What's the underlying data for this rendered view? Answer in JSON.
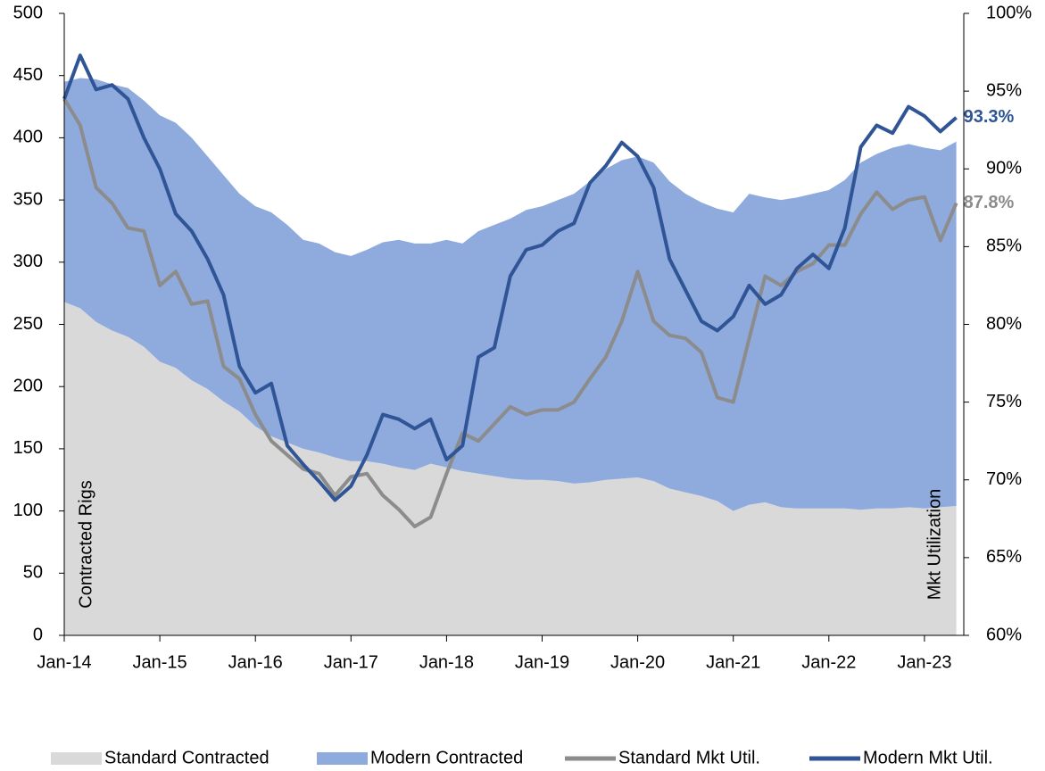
{
  "chart_data": {
    "type": "area_line",
    "y_label": "Contracted Rigs",
    "y2_label": "Mkt Utilization",
    "categories": [
      "Jan-14",
      null,
      null,
      null,
      null,
      null,
      "Jan-15",
      null,
      null,
      null,
      null,
      null,
      "Jan-16",
      null,
      null,
      null,
      null,
      null,
      "Jan-17",
      null,
      null,
      null,
      null,
      null,
      "Jan-18",
      null,
      null,
      null,
      null,
      null,
      "Jan-19",
      null,
      null,
      null,
      null,
      null,
      "Jan-20",
      null,
      null,
      null,
      null,
      null,
      "Jan-21",
      null,
      null,
      null,
      null,
      null,
      "Jan-22",
      null,
      null,
      null,
      null,
      null,
      "Jan-23",
      null,
      null
    ],
    "ylim": [
      0,
      500
    ],
    "yticks": [
      0,
      50,
      100,
      150,
      200,
      250,
      300,
      350,
      400,
      450,
      500
    ],
    "y2lim": [
      60,
      100
    ],
    "y2ticks": [
      {
        "value": 60,
        "label": "60%"
      },
      {
        "value": 65,
        "label": "65%"
      },
      {
        "value": 70,
        "label": "70%"
      },
      {
        "value": 75,
        "label": "75%"
      },
      {
        "value": 80,
        "label": "80%"
      },
      {
        "value": 85,
        "label": "85%"
      },
      {
        "value": 90,
        "label": "90%"
      },
      {
        "value": 95,
        "label": "95%"
      },
      {
        "value": 100,
        "label": "100%"
      }
    ],
    "series": [
      {
        "name": "Standard Contracted",
        "kind": "area",
        "color": "#d9d9d9",
        "values": [
          268,
          263,
          252,
          245,
          240,
          232,
          220,
          215,
          205,
          198,
          188,
          180,
          168,
          160,
          155,
          150,
          147,
          143,
          140,
          140,
          138,
          135,
          133,
          138,
          135,
          132,
          130,
          128,
          126,
          125,
          125,
          124,
          122,
          123,
          125,
          126,
          127,
          124,
          118,
          115,
          112,
          108,
          100,
          105,
          107,
          103,
          102,
          102,
          102,
          102,
          101,
          102,
          102,
          103,
          102,
          103,
          104
        ]
      },
      {
        "name": "Modern Contracted",
        "kind": "area",
        "color": "#8faadc",
        "values": [
          177,
          185,
          195,
          198,
          200,
          198,
          198,
          197,
          195,
          187,
          182,
          175,
          177,
          180,
          175,
          168,
          168,
          165,
          165,
          170,
          178,
          183,
          182,
          177,
          183,
          183,
          195,
          202,
          209,
          217,
          220,
          226,
          233,
          242,
          250,
          256,
          258,
          256,
          247,
          240,
          236,
          235,
          240,
          250,
          245,
          247,
          250,
          253,
          256,
          264,
          279,
          285,
          290,
          292,
          290,
          287,
          293
        ]
      },
      {
        "name": "Standard Mkt Util.",
        "kind": "line",
        "axis": "y2",
        "color": "#8c8c8c",
        "values": [
          94.5,
          92.8,
          88.8,
          87.8,
          86.2,
          86.0,
          82.5,
          83.4,
          81.3,
          81.5,
          77.3,
          76.5,
          74.2,
          72.5,
          71.6,
          70.7,
          70.4,
          69.0,
          70.2,
          70.4,
          69.0,
          68.1,
          67.0,
          67.6,
          70.4,
          73.0,
          72.5,
          73.6,
          74.7,
          74.2,
          74.5,
          74.5,
          75.0,
          76.5,
          77.9,
          80.2,
          83.4,
          80.2,
          79.3,
          79.1,
          78.2,
          75.3,
          75.0,
          79.1,
          83.1,
          82.5,
          83.4,
          83.9,
          85.1,
          85.1,
          87.1,
          88.5,
          87.4,
          88.0,
          88.2,
          85.4,
          87.8
        ],
        "value_labels": [
          null,
          null,
          null,
          null,
          null,
          null,
          null,
          null,
          null,
          null,
          null,
          null,
          null,
          null,
          null,
          null,
          null,
          null,
          null,
          null,
          null,
          null,
          null,
          null,
          null,
          null,
          null,
          null,
          null,
          null,
          null,
          null,
          null,
          null,
          null,
          null,
          null,
          null,
          null,
          null,
          null,
          null,
          null,
          null,
          null,
          null,
          null,
          null,
          null,
          null,
          null,
          null,
          null,
          null,
          null,
          null,
          "87.8%"
        ]
      },
      {
        "name": "Modern Mkt Util.",
        "kind": "line",
        "axis": "y2",
        "color": "#2f5597",
        "values": [
          94.5,
          97.3,
          95.1,
          95.4,
          94.5,
          92.0,
          90.0,
          87.1,
          86.0,
          84.2,
          81.9,
          77.3,
          75.6,
          76.2,
          72.2,
          71.0,
          69.9,
          68.7,
          69.6,
          71.6,
          74.2,
          73.9,
          73.3,
          73.9,
          71.3,
          72.2,
          77.9,
          78.5,
          83.1,
          84.8,
          85.1,
          86.0,
          86.5,
          89.1,
          90.2,
          91.7,
          90.8,
          88.8,
          84.2,
          82.2,
          80.2,
          79.6,
          80.5,
          82.5,
          81.3,
          81.9,
          83.6,
          84.5,
          83.6,
          86.2,
          91.4,
          92.8,
          92.3,
          94.0,
          93.4,
          92.4,
          93.3
        ],
        "value_labels": [
          null,
          null,
          null,
          null,
          null,
          null,
          null,
          null,
          null,
          null,
          null,
          null,
          null,
          null,
          null,
          null,
          null,
          null,
          null,
          null,
          null,
          null,
          null,
          null,
          null,
          null,
          null,
          null,
          null,
          null,
          null,
          null,
          null,
          null,
          null,
          null,
          null,
          null,
          null,
          null,
          null,
          null,
          null,
          null,
          null,
          null,
          null,
          null,
          null,
          null,
          null,
          null,
          null,
          null,
          null,
          null,
          "93.3%"
        ]
      }
    ]
  }
}
